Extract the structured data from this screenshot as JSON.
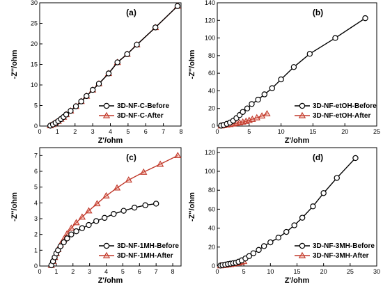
{
  "chart_data": [
    {
      "type": "line",
      "panel": "(a)",
      "xlabel": "Z'/ohm",
      "ylabel": "-Z''/ohm",
      "xlim": [
        0,
        8
      ],
      "ylim": [
        0,
        30
      ],
      "xticks": [
        0,
        1,
        2,
        3,
        4,
        5,
        6,
        7,
        8
      ],
      "yticks": [
        0,
        5,
        10,
        15,
        20,
        25,
        30
      ],
      "legend": "bottom-right",
      "series": [
        {
          "name": "3D-NF-C-Before",
          "marker": "circle",
          "color": "#000000",
          "x": [
            0.6,
            0.75,
            0.9,
            1.05,
            1.2,
            1.35,
            1.5,
            1.75,
            2.05,
            2.35,
            2.65,
            3.0,
            3.35,
            3.9,
            4.4,
            4.95,
            5.5,
            6.55,
            7.8
          ],
          "y": [
            0.1,
            0.4,
            0.8,
            1.2,
            1.7,
            2.2,
            2.8,
            3.7,
            4.8,
            6.0,
            7.3,
            8.8,
            10.3,
            12.8,
            15.5,
            17.5,
            19.8,
            24.0,
            29.2
          ]
        },
        {
          "name": "3D-NF-C-After",
          "marker": "triangle",
          "color": "#c0392b",
          "x": [
            0.6,
            0.75,
            0.9,
            1.05,
            1.2,
            1.35,
            1.5,
            1.75,
            2.05,
            2.35,
            2.65,
            3.0,
            3.35,
            3.9,
            4.4,
            4.95,
            5.5,
            6.55,
            7.8
          ],
          "y": [
            0.1,
            0.4,
            0.8,
            1.2,
            1.7,
            2.2,
            2.8,
            3.7,
            4.8,
            6.0,
            7.3,
            8.8,
            10.3,
            12.8,
            15.5,
            17.5,
            19.8,
            24.0,
            29.2
          ]
        }
      ]
    },
    {
      "type": "line",
      "panel": "(b)",
      "xlabel": "Z'/ohm",
      "ylabel": "-Z''/ohm",
      "xlim": [
        0,
        25
      ],
      "ylim": [
        0,
        140
      ],
      "xticks": [
        0,
        5,
        10,
        15,
        20,
        25
      ],
      "yticks": [
        0,
        20,
        40,
        60,
        80,
        100,
        120,
        140
      ],
      "legend": "bottom-right",
      "series": [
        {
          "name": "3D-NF-etOH-Before",
          "marker": "circle",
          "color": "#000000",
          "x": [
            0.6,
            1.0,
            1.5,
            2.0,
            2.5,
            3.0,
            3.5,
            4.0,
            4.7,
            5.4,
            6.4,
            7.4,
            8.6,
            10.0,
            12.0,
            14.5,
            18.5,
            23.2
          ],
          "y": [
            0.5,
            1.2,
            2.5,
            4.0,
            6.0,
            9.0,
            12.5,
            16.0,
            20.0,
            25.0,
            30.0,
            36.0,
            43.0,
            53.0,
            67.0,
            82.0,
            100.0,
            122.5
          ]
        },
        {
          "name": "3D-NF-etOH-After",
          "marker": "triangle",
          "color": "#c0392b",
          "x": [
            0.6,
            1.0,
            1.5,
            2.0,
            2.5,
            3.0,
            3.5,
            4.0,
            4.5,
            5.0,
            5.5,
            6.2,
            7.0,
            7.8
          ],
          "y": [
            0.3,
            0.7,
            1.2,
            1.8,
            2.4,
            3.0,
            3.8,
            4.6,
            5.5,
            6.5,
            7.8,
            9.5,
            11.5,
            14.0
          ]
        }
      ]
    },
    {
      "type": "line",
      "panel": "(c)",
      "xlabel": "Z'/ohm",
      "ylabel": "-Z''/ohm",
      "xlim": [
        0,
        8.5
      ],
      "ylim": [
        0,
        7.5
      ],
      "xticks": [
        0,
        1,
        2,
        3,
        4,
        5,
        6,
        7,
        8
      ],
      "yticks": [
        0,
        1,
        2,
        3,
        4,
        5,
        6,
        7
      ],
      "legend": "bottom-right",
      "series": [
        {
          "name": "3D-NF-1MH-Before",
          "marker": "circle",
          "color": "#000000",
          "x": [
            0.7,
            0.8,
            0.9,
            1.0,
            1.1,
            1.25,
            1.45,
            1.65,
            1.9,
            2.2,
            2.55,
            2.95,
            3.4,
            3.9,
            4.45,
            5.05,
            5.7,
            6.35,
            7.0
          ],
          "y": [
            0.05,
            0.3,
            0.55,
            0.8,
            1.0,
            1.25,
            1.5,
            1.75,
            2.0,
            2.2,
            2.4,
            2.6,
            2.85,
            3.05,
            3.3,
            3.5,
            3.7,
            3.85,
            3.95
          ]
        },
        {
          "name": "3D-NF-1MH-After",
          "marker": "triangle",
          "color": "#c0392b",
          "x": [
            0.7,
            0.8,
            0.9,
            1.0,
            1.1,
            1.25,
            1.45,
            1.65,
            1.9,
            2.2,
            2.55,
            2.95,
            3.45,
            4.0,
            4.65,
            5.35,
            6.25,
            7.25,
            8.3
          ],
          "y": [
            0.05,
            0.3,
            0.55,
            0.8,
            1.05,
            1.35,
            1.7,
            2.05,
            2.4,
            2.75,
            3.1,
            3.5,
            3.95,
            4.45,
            4.95,
            5.45,
            5.95,
            6.45,
            7.0
          ]
        }
      ]
    },
    {
      "type": "line",
      "panel": "(d)",
      "xlabel": "Z'/ohm",
      "ylabel": "-Z''/ohm",
      "xlim": [
        0,
        30
      ],
      "ylim": [
        0,
        125
      ],
      "xticks": [
        0,
        5,
        10,
        15,
        20,
        25,
        30
      ],
      "yticks": [
        0,
        20,
        40,
        60,
        80,
        100,
        120
      ],
      "legend": "bottom-right",
      "series": [
        {
          "name": "3D-NF-3MH-Before",
          "marker": "circle",
          "color": "#000000",
          "x": [
            0.6,
            1.0,
            1.5,
            2.0,
            2.5,
            3.0,
            3.5,
            4.0,
            4.6,
            5.3,
            6.0,
            6.8,
            7.8,
            8.8,
            10.0,
            11.5,
            13.0,
            14.5,
            16.0,
            18.0,
            20.0,
            22.5,
            26.0
          ],
          "y": [
            0.5,
            1.0,
            1.5,
            2.0,
            2.5,
            3.0,
            3.5,
            4.5,
            6.0,
            8.0,
            10.5,
            13.5,
            17.0,
            21.0,
            25.0,
            30.0,
            36.0,
            43.0,
            51.0,
            63.0,
            77.0,
            93.0,
            114.0
          ]
        },
        {
          "name": "3D-NF-3MH-After",
          "marker": "triangle",
          "color": "#c0392b",
          "x": [
            0.6,
            1.0,
            1.5,
            2.0,
            2.5,
            3.0,
            3.5,
            4.0,
            4.5,
            5.0
          ],
          "y": [
            0.3,
            0.6,
            0.9,
            1.3,
            1.7,
            2.2,
            2.7,
            3.3,
            4.0,
            4.8
          ]
        }
      ]
    }
  ]
}
